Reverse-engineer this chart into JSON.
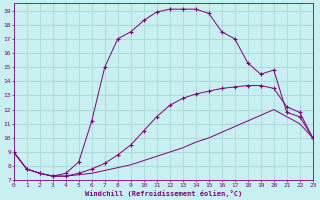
{
  "background_color": "#c8f0f0",
  "grid_color": "#a8d8d8",
  "line_color": "#800080",
  "xlim": [
    0,
    23
  ],
  "ylim": [
    7,
    19.5
  ],
  "yticks": [
    7,
    8,
    9,
    10,
    11,
    12,
    13,
    14,
    15,
    16,
    17,
    18,
    19
  ],
  "xticks": [
    0,
    1,
    2,
    3,
    4,
    5,
    6,
    7,
    8,
    9,
    10,
    11,
    12,
    13,
    14,
    15,
    16,
    17,
    18,
    19,
    20,
    21,
    22,
    23
  ],
  "xlabel": "Windchill (Refroidissement éolien,°C)",
  "series": [
    {
      "x": [
        0,
        1,
        2,
        3,
        4,
        5,
        6,
        7,
        8,
        9,
        10,
        11,
        12,
        13,
        14,
        15,
        16,
        17,
        18,
        19,
        20,
        21,
        22,
        23
      ],
      "y": [
        9.0,
        7.8,
        7.5,
        7.3,
        7.3,
        7.4,
        7.5,
        7.7,
        7.9,
        8.1,
        8.4,
        8.7,
        9.0,
        9.3,
        9.7,
        10.0,
        10.4,
        10.8,
        11.2,
        11.6,
        12.0,
        11.5,
        11.0,
        10.0
      ],
      "has_marker": false
    },
    {
      "x": [
        0,
        1,
        2,
        3,
        4,
        5,
        6,
        7,
        8,
        9,
        10,
        11,
        12,
        13,
        14,
        15,
        16,
        17,
        18,
        19,
        20,
        21,
        22,
        23
      ],
      "y": [
        9.0,
        7.8,
        7.5,
        7.3,
        7.3,
        7.5,
        7.8,
        8.2,
        8.8,
        9.5,
        10.5,
        11.5,
        12.3,
        12.8,
        13.1,
        13.3,
        13.5,
        13.6,
        13.7,
        13.7,
        13.5,
        12.2,
        11.8,
        10.0
      ],
      "has_marker": true
    },
    {
      "x": [
        0,
        1,
        2,
        3,
        4,
        5,
        6,
        7,
        8,
        9,
        10,
        11,
        12,
        13,
        14,
        15,
        16,
        17,
        18,
        19,
        20,
        21,
        22,
        23
      ],
      "y": [
        9.0,
        7.8,
        7.5,
        7.3,
        7.5,
        8.3,
        11.2,
        15.0,
        17.0,
        17.5,
        18.3,
        18.9,
        19.1,
        19.1,
        19.1,
        18.8,
        17.5,
        17.0,
        15.3,
        14.5,
        14.8,
        11.8,
        11.5,
        10.0
      ],
      "has_marker": true
    }
  ]
}
